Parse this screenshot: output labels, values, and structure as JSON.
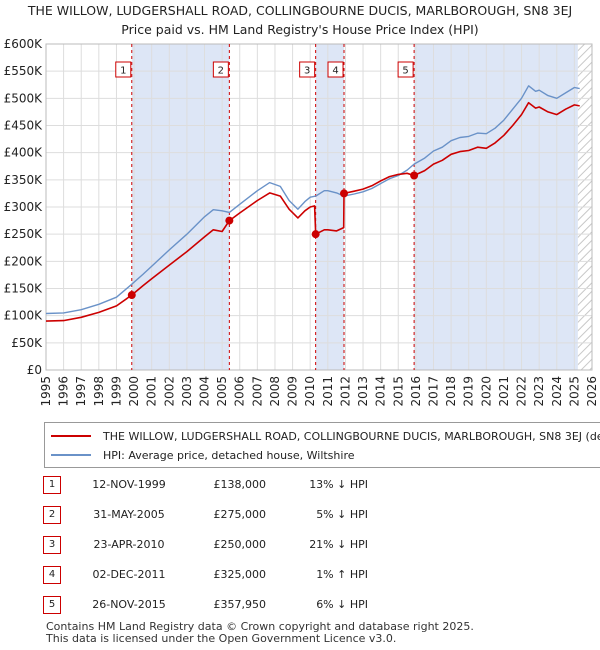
{
  "title_line1": "THE WILLOW, LUDGERSHALL ROAD, COLLINGBOURNE DUCIS, MARLBOROUGH, SN8 3EJ",
  "title_line2": "Price paid vs. HM Land Registry's House Price Index (HPI)",
  "colors": {
    "property": "#cc0000",
    "hpi": "#6a92c8",
    "shade": "#dde6f6",
    "grid": "#dddddd"
  },
  "chart_data": {
    "type": "line",
    "xlim": [
      1995,
      2026
    ],
    "ylim": [
      0,
      600000
    ],
    "y_ticks": [
      0,
      50000,
      100000,
      150000,
      200000,
      250000,
      300000,
      350000,
      400000,
      450000,
      500000,
      550000,
      600000
    ],
    "y_tick_labels": [
      "£0",
      "£50K",
      "£100K",
      "£150K",
      "£200K",
      "£250K",
      "£300K",
      "£350K",
      "£400K",
      "£450K",
      "£500K",
      "£550K",
      "£600K"
    ],
    "x_ticks": [
      "1995",
      "1996",
      "1997",
      "1998",
      "1999",
      "2000",
      "2001",
      "2002",
      "2003",
      "2004",
      "2005",
      "2006",
      "2007",
      "2008",
      "2009",
      "2010",
      "2011",
      "2012",
      "2013",
      "2014",
      "2015",
      "2016",
      "2017",
      "2018",
      "2019",
      "2020",
      "2021",
      "2022",
      "2023",
      "2024",
      "2025",
      "2026"
    ],
    "grid": true,
    "shaded_periods": [
      [
        1999.87,
        2005.41
      ],
      [
        2010.31,
        2011.92
      ],
      [
        2015.9,
        2025.2
      ]
    ],
    "hatched_from": 2025.2,
    "series": [
      {
        "name": "HPI: Average price, detached house, Wiltshire",
        "key": "hpi",
        "points": [
          [
            1995,
            104000
          ],
          [
            1996,
            105000
          ],
          [
            1997,
            111000
          ],
          [
            1998,
            121000
          ],
          [
            1999,
            134000
          ],
          [
            1999.87,
            158000
          ],
          [
            2000.5,
            176000
          ],
          [
            2001,
            191000
          ],
          [
            2002,
            221000
          ],
          [
            2003,
            250000
          ],
          [
            2004,
            282000
          ],
          [
            2004.5,
            295000
          ],
          [
            2005,
            293000
          ],
          [
            2005.41,
            290000
          ],
          [
            2006,
            305000
          ],
          [
            2007,
            330000
          ],
          [
            2007.7,
            345000
          ],
          [
            2008.3,
            338000
          ],
          [
            2008.8,
            312000
          ],
          [
            2009.3,
            296000
          ],
          [
            2009.7,
            310000
          ],
          [
            2010,
            318000
          ],
          [
            2010.31,
            320000
          ],
          [
            2010.8,
            330000
          ],
          [
            2011,
            330000
          ],
          [
            2011.5,
            326000
          ],
          [
            2011.92,
            320000
          ],
          [
            2012.5,
            324000
          ],
          [
            2013,
            328000
          ],
          [
            2013.5,
            334000
          ],
          [
            2014,
            343000
          ],
          [
            2014.5,
            352000
          ],
          [
            2015,
            358000
          ],
          [
            2015.5,
            368000
          ],
          [
            2015.9,
            379000
          ],
          [
            2016.5,
            390000
          ],
          [
            2017,
            403000
          ],
          [
            2017.5,
            410000
          ],
          [
            2018,
            422000
          ],
          [
            2018.5,
            428000
          ],
          [
            2019,
            430000
          ],
          [
            2019.5,
            436000
          ],
          [
            2020,
            435000
          ],
          [
            2020.5,
            445000
          ],
          [
            2021,
            460000
          ],
          [
            2021.5,
            480000
          ],
          [
            2022,
            500000
          ],
          [
            2022.4,
            523000
          ],
          [
            2022.8,
            513000
          ],
          [
            2023,
            515000
          ],
          [
            2023.5,
            505000
          ],
          [
            2024,
            500000
          ],
          [
            2024.5,
            510000
          ],
          [
            2025,
            520000
          ],
          [
            2025.3,
            518000
          ]
        ]
      },
      {
        "name": "THE WILLOW, LUDGERSHALL ROAD, COLLINGBOURNE DUCIS, MARLBOROUGH, SN8 3EJ (detached house)",
        "key": "property",
        "points": [
          [
            1995,
            90000
          ],
          [
            1996,
            91000
          ],
          [
            1997,
            97000
          ],
          [
            1998,
            106000
          ],
          [
            1999,
            118000
          ],
          [
            1999.87,
            138000
          ],
          [
            2000.5,
            155000
          ],
          [
            2001,
            168000
          ],
          [
            2002,
            193000
          ],
          [
            2003,
            218000
          ],
          [
            2004,
            245000
          ],
          [
            2004.5,
            258000
          ],
          [
            2005,
            255000
          ],
          [
            2005.41,
            275000
          ],
          [
            2006,
            289000
          ],
          [
            2007,
            312000
          ],
          [
            2007.7,
            326000
          ],
          [
            2008.3,
            320000
          ],
          [
            2008.8,
            296000
          ],
          [
            2009.3,
            280000
          ],
          [
            2009.7,
            293000
          ],
          [
            2010,
            300000
          ],
          [
            2010.25,
            302000
          ],
          [
            2010.31,
            250000
          ],
          [
            2010.8,
            258000
          ],
          [
            2011,
            258000
          ],
          [
            2011.5,
            256000
          ],
          [
            2011.9,
            262000
          ],
          [
            2011.92,
            325000
          ],
          [
            2012.5,
            329000
          ],
          [
            2013,
            333000
          ],
          [
            2013.5,
            339000
          ],
          [
            2014,
            348000
          ],
          [
            2014.5,
            356000
          ],
          [
            2015,
            360000
          ],
          [
            2015.5,
            362000
          ],
          [
            2015.9,
            357950
          ],
          [
            2016.5,
            367000
          ],
          [
            2017,
            379000
          ],
          [
            2017.5,
            386000
          ],
          [
            2018,
            397000
          ],
          [
            2018.5,
            402000
          ],
          [
            2019,
            404000
          ],
          [
            2019.5,
            410000
          ],
          [
            2020,
            408000
          ],
          [
            2020.5,
            418000
          ],
          [
            2021,
            432000
          ],
          [
            2021.5,
            450000
          ],
          [
            2022,
            470000
          ],
          [
            2022.4,
            492000
          ],
          [
            2022.8,
            482000
          ],
          [
            2023,
            484000
          ],
          [
            2023.5,
            475000
          ],
          [
            2024,
            470000
          ],
          [
            2024.5,
            480000
          ],
          [
            2025,
            488000
          ],
          [
            2025.3,
            486000
          ]
        ]
      }
    ],
    "transactions": [
      {
        "num": "1",
        "x": 1999.87,
        "y": 138000
      },
      {
        "num": "2",
        "x": 2005.41,
        "y": 275000
      },
      {
        "num": "3",
        "x": 2010.31,
        "y": 250000
      },
      {
        "num": "4",
        "x": 2011.92,
        "y": 325000
      },
      {
        "num": "5",
        "x": 2015.9,
        "y": 357950
      }
    ]
  },
  "legend": {
    "property_label": "THE WILLOW, LUDGERSHALL ROAD, COLLINGBOURNE DUCIS, MARLBOROUGH, SN8 3EJ (detached house)",
    "hpi_label": "HPI: Average price, detached house, Wiltshire"
  },
  "transactions_table": [
    {
      "num": "1",
      "date": "12-NOV-1999",
      "price": "£138,000",
      "hpi": "13% ↓ HPI"
    },
    {
      "num": "2",
      "date": "31-MAY-2005",
      "price": "£275,000",
      "hpi": "5% ↓ HPI"
    },
    {
      "num": "3",
      "date": "23-APR-2010",
      "price": "£250,000",
      "hpi": "21% ↓ HPI"
    },
    {
      "num": "4",
      "date": "02-DEC-2011",
      "price": "£325,000",
      "hpi": "1% ↑ HPI"
    },
    {
      "num": "5",
      "date": "26-NOV-2015",
      "price": "£357,950",
      "hpi": "6% ↓ HPI"
    }
  ],
  "footer_line1": "Contains HM Land Registry data © Crown copyright and database right 2025.",
  "footer_line2": "This data is licensed under the Open Government Licence v3.0."
}
